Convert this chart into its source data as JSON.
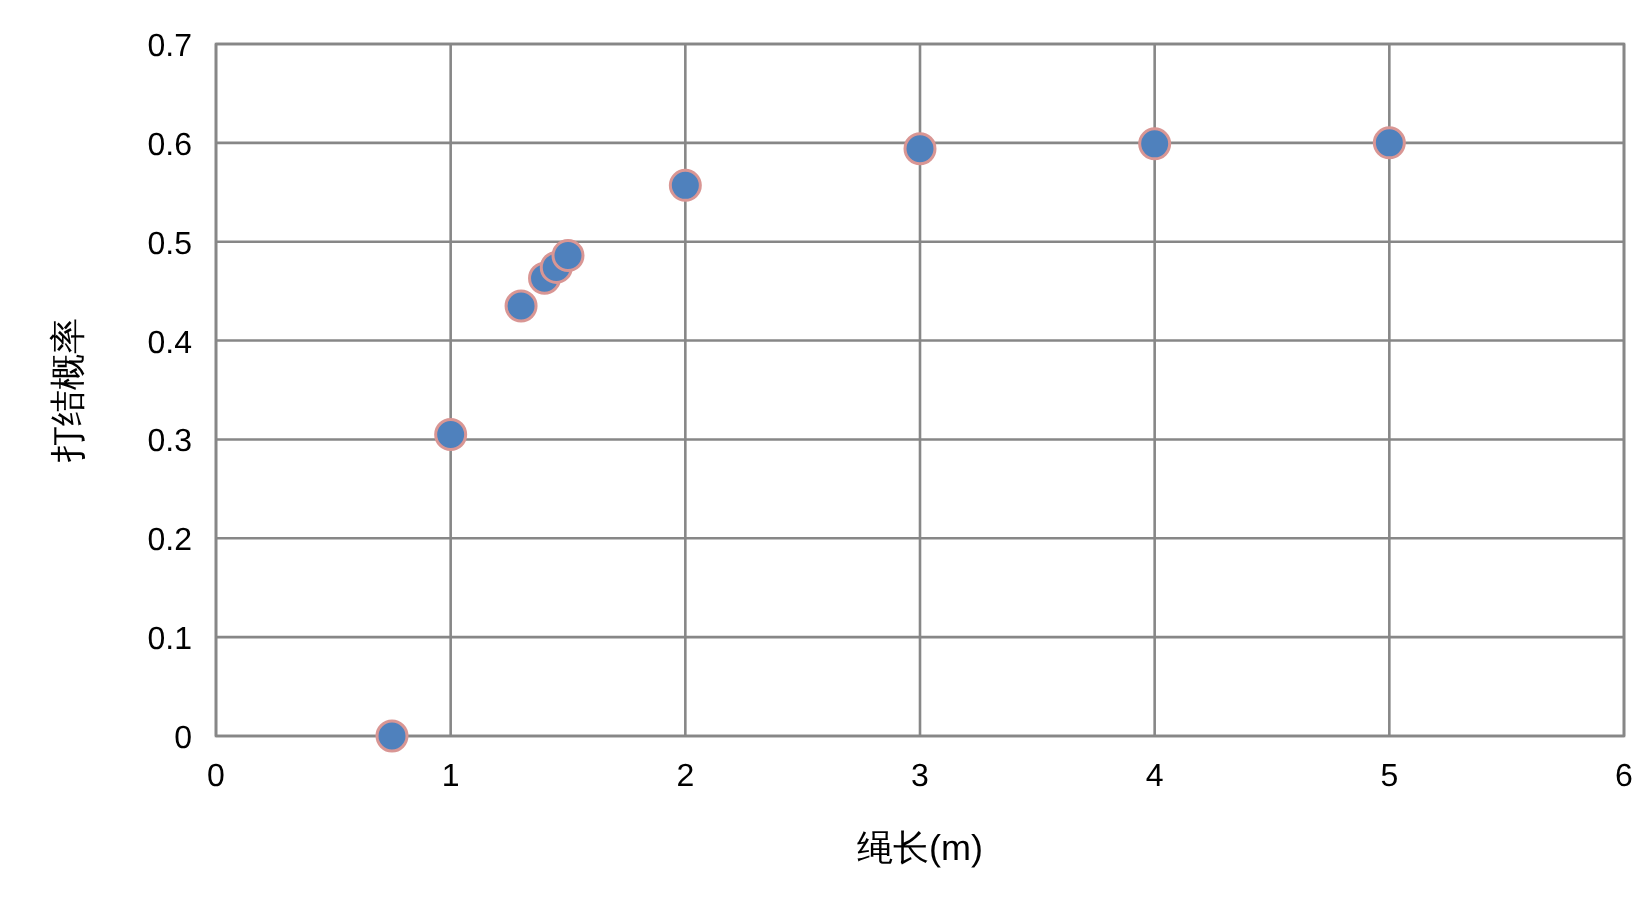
{
  "chart_data": {
    "type": "scatter",
    "xlabel": "绳长(m)",
    "ylabel": "打结概率",
    "x": [
      0.75,
      1,
      1.3,
      1.4,
      1.45,
      1.5,
      2,
      3,
      4,
      5
    ],
    "series": [
      {
        "color": "#4f81bd",
        "values": [
          0,
          0.305,
          0.435,
          0.463,
          0.474,
          0.486,
          0.557,
          0.594,
          0.599,
          0.6
        ]
      }
    ],
    "xlim": [
      0,
      6
    ],
    "xticks": [
      0,
      1,
      2,
      3,
      4,
      5,
      6
    ],
    "ylim": [
      0,
      0.7
    ],
    "yticks": [
      0,
      0.1,
      0.2,
      0.3,
      0.4,
      0.5,
      0.6,
      0.7
    ],
    "grid": true,
    "marker": "circle"
  }
}
